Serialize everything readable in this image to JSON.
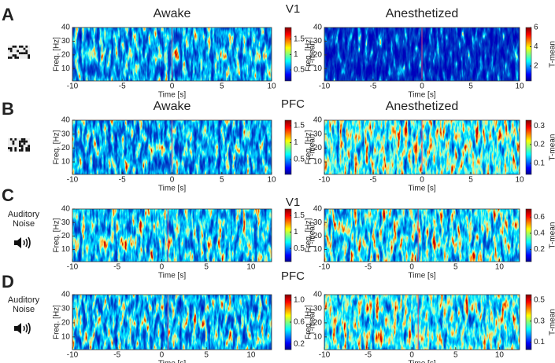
{
  "figure": {
    "y_label": "Freq. [Hz]",
    "x_label": "Time [s]",
    "colorbar_label": "T-mean",
    "rows": [
      {
        "letter": "A",
        "area": "V1",
        "xlim": [
          -10,
          10
        ],
        "xticks": [
          -10,
          -5,
          0,
          5,
          10
        ],
        "ylim": [
          1,
          40
        ],
        "yticks": [
          10,
          20,
          30,
          40
        ],
        "plots": [
          {
            "title": "Awake",
            "clim": [
              0.14,
              1.88
            ],
            "cticks": [
              0.5,
              1,
              1.5
            ]
          },
          {
            "title": "Anesthetized",
            "clim": [
              0.45,
              6
            ],
            "cticks": [
              2,
              4,
              6
            ]
          }
        ]
      },
      {
        "letter": "B",
        "area": "PFC",
        "xlim": [
          -10,
          10
        ],
        "xticks": [
          -10,
          -5,
          0,
          5,
          10
        ],
        "ylim": [
          1,
          40
        ],
        "yticks": [
          10,
          20,
          30,
          40
        ],
        "plots": [
          {
            "title": "Awake",
            "clim": [
              0.06,
              1.66
            ],
            "cticks": [
              0.5,
              1,
              1.5
            ]
          },
          {
            "title": "Anesthetized",
            "clim": [
              0.04,
              0.33
            ],
            "cticks": [
              0.1,
              0.2,
              0.3
            ]
          }
        ]
      },
      {
        "letter": "C",
        "area": "V1",
        "stimulus": [
          "Auditory",
          "Noise"
        ],
        "xlim": [
          -10,
          12.3
        ],
        "xticks": [
          -10,
          -5,
          0,
          5,
          10
        ],
        "ylim": [
          1,
          40
        ],
        "yticks": [
          10,
          20,
          30,
          40
        ],
        "plots": [
          {
            "clim": [
              0.1,
              1.7
            ],
            "cticks": [
              0.5,
              1,
              1.5
            ]
          },
          {
            "clim": [
              0.05,
              0.7
            ],
            "cticks": [
              0.2,
              0.4,
              0.6
            ]
          }
        ]
      },
      {
        "letter": "D",
        "area": "PFC",
        "stimulus": [
          "Auditory",
          "Noise"
        ],
        "xlim": [
          -10,
          12.3
        ],
        "xticks": [
          -10,
          -5,
          0,
          5,
          10
        ],
        "ylim": [
          1,
          40
        ],
        "yticks": [
          10,
          20,
          30,
          40
        ],
        "plots": [
          {
            "clim": [
              0.1,
              1.1
            ],
            "cticks": [
              0.2,
              0.6,
              {
                "value": 1.0,
                "label": "1.0"
              }
            ]
          },
          {
            "clim": [
              0.03,
              0.55
            ],
            "cticks": [
              0.1,
              0.3,
              0.5
            ]
          }
        ]
      }
    ]
  }
}
